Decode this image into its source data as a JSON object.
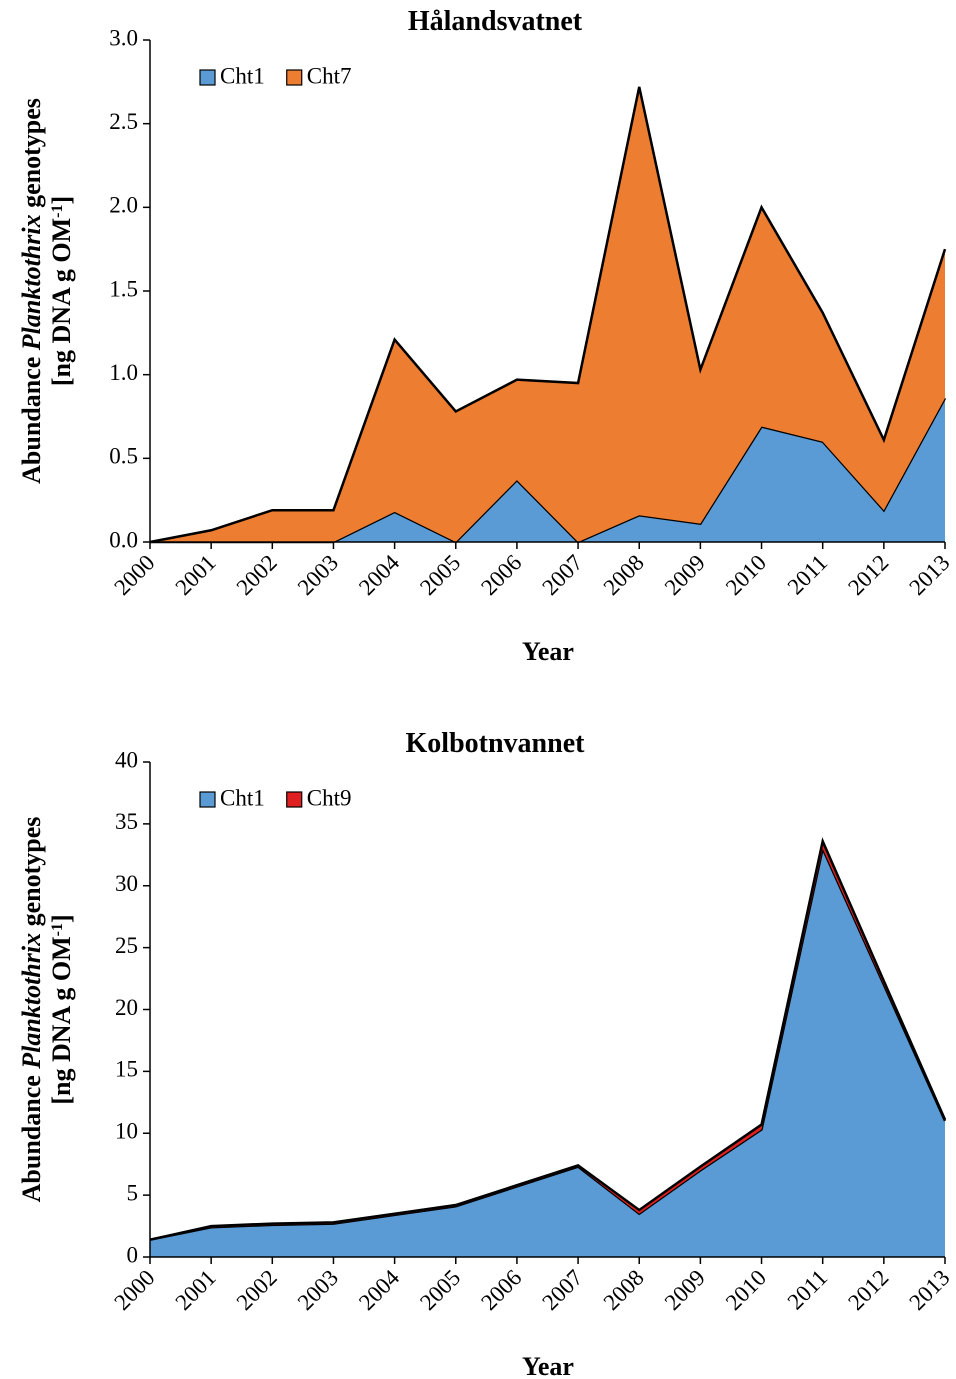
{
  "chart_data": [
    {
      "type": "area",
      "stacked": true,
      "title": "Hålandsvatnet",
      "categories": [
        "2000",
        "2001",
        "2002",
        "2003",
        "2004",
        "2005",
        "2006",
        "2007",
        "2008",
        "2009",
        "2010",
        "2011",
        "2012",
        "2013"
      ],
      "series": [
        {
          "name": "Cht1",
          "color": "#5b9bd5",
          "values": [
            0,
            0,
            0,
            0,
            0.18,
            0,
            0.37,
            0,
            0.16,
            0.11,
            0.69,
            0.6,
            0.19,
            0.86
          ]
        },
        {
          "name": "Cht7",
          "color": "#ed7d31",
          "values": [
            0,
            0.07,
            0.19,
            0.19,
            1.03,
            0.78,
            0.6,
            0.95,
            2.56,
            0.92,
            1.31,
            0.77,
            0.42,
            0.89
          ]
        }
      ],
      "ylim": [
        0,
        3
      ],
      "yticks": [
        {
          "value": 0,
          "label": "0.0"
        },
        0.5,
        {
          "value": 1,
          "label": "1.0"
        },
        1.5,
        {
          "value": 2,
          "label": "2.0"
        },
        2.5,
        {
          "value": 3,
          "label": "3.0"
        }
      ],
      "xlabel": "Year",
      "ylabel_lines": [
        [
          "Abundance ",
          "Planktothrix",
          " genotypes"
        ],
        [
          "[ng DNA g OM",
          "-1",
          "]"
        ]
      ],
      "legend": "upper left"
    },
    {
      "type": "area",
      "stacked": true,
      "title": "Kolbotnvannet",
      "categories": [
        "2000",
        "2001",
        "2002",
        "2003",
        "2004",
        "2005",
        "2006",
        "2007",
        "2008",
        "2009",
        "2010",
        "2011",
        "2012",
        "2013"
      ],
      "series": [
        {
          "name": "Cht1",
          "color": "#5b9bd5",
          "values": [
            1.4,
            2.4,
            2.6,
            2.7,
            3.4,
            4.1,
            5.7,
            7.3,
            3.5,
            7.0,
            10.3,
            33.0,
            22.0,
            11.0
          ]
        },
        {
          "name": "Cht9",
          "color": "#e02020",
          "values": [
            0,
            0.1,
            0.1,
            0.1,
            0.1,
            0.1,
            0.1,
            0.1,
            0.3,
            0.3,
            0.4,
            0.6,
            0.3,
            0.1
          ]
        }
      ],
      "ylim": [
        0,
        40
      ],
      "yticks": [
        0,
        5,
        10,
        15,
        20,
        25,
        30,
        35,
        40
      ],
      "xlabel": "Year",
      "ylabel_lines": [
        [
          "Abundance ",
          "Planktothrix",
          " genotypes"
        ],
        [
          "[ng DNA g OM",
          "-1",
          "]"
        ]
      ],
      "legend": "upper left"
    }
  ]
}
